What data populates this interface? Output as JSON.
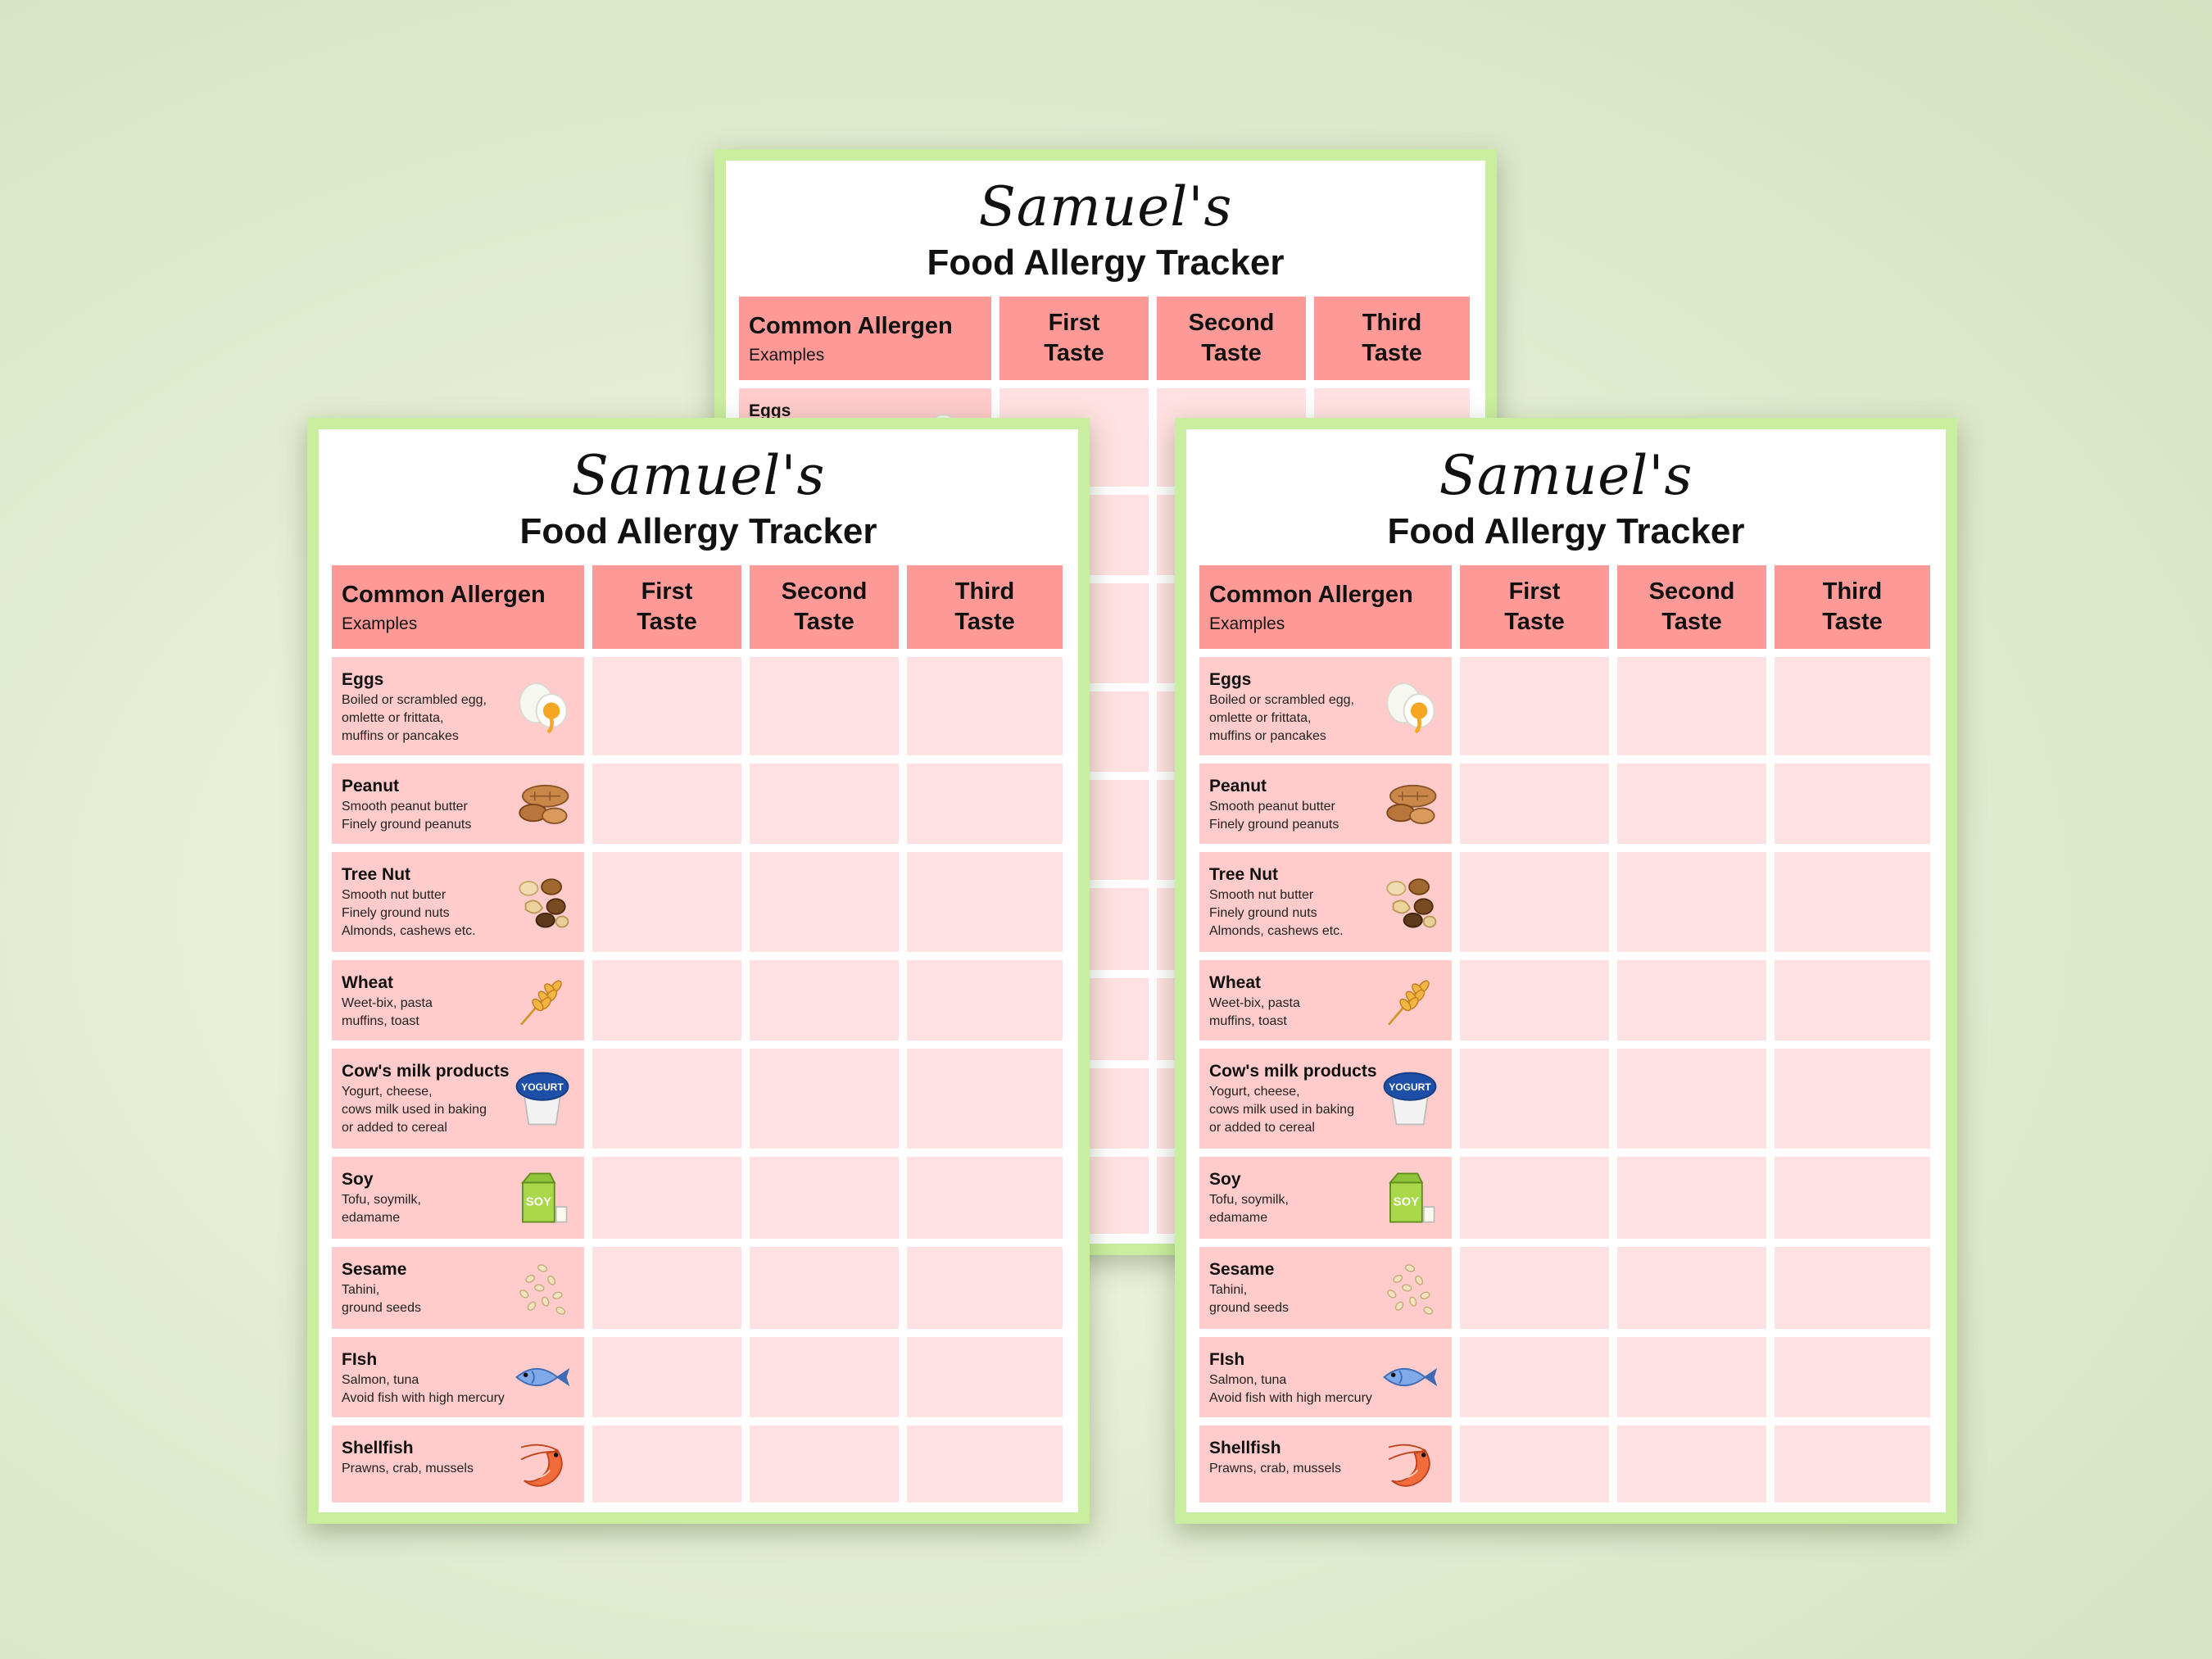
{
  "tracker": {
    "owner": "Samuel's",
    "title": "Food Allergy Tracker",
    "header": {
      "allergen": "Common Allergen",
      "examples": "Examples",
      "taste1_line1": "First",
      "taste1_line2": "Taste",
      "taste2_line1": "Second",
      "taste2_line2": "Taste",
      "taste3_line1": "Third",
      "taste3_line2": "Taste"
    },
    "allergens": [
      {
        "name": "Eggs",
        "examples": "Boiled or scrambled egg,\nomlette or frittata,\nmuffins or pancakes",
        "icon": "egg-icon"
      },
      {
        "name": "Peanut",
        "examples": "Smooth peanut butter\nFinely ground peanuts",
        "icon": "peanut-icon"
      },
      {
        "name": "Tree Nut",
        "examples": "Smooth nut butter\nFinely ground nuts\nAlmonds, cashews etc.",
        "icon": "tree-nut-icon"
      },
      {
        "name": "Wheat",
        "examples": "Weet-bix, pasta\nmuffins, toast",
        "icon": "wheat-icon"
      },
      {
        "name": "Cow's milk products",
        "examples": "Yogurt, cheese,\ncows milk used in baking\nor added to cereal",
        "icon": "yogurt-icon",
        "icon_text": "YOGURT"
      },
      {
        "name": "Soy",
        "examples": "Tofu, soymilk,\nedamame",
        "icon": "soy-milk-icon",
        "icon_text": "SOY"
      },
      {
        "name": "Sesame",
        "examples": "Tahini,\nground seeds",
        "icon": "sesame-seeds-icon"
      },
      {
        "name": "FIsh",
        "examples": "Salmon, tuna\nAvoid fish with high mercury",
        "icon": "fish-icon"
      },
      {
        "name": "Shellfish",
        "examples": "Prawns, crab, mussels",
        "icon": "shrimp-icon"
      }
    ]
  },
  "colors": {
    "background": "#dfe9cc",
    "sheet_border": "#c9ee9f",
    "header_cell": "#fd9a98",
    "allergen_cell": "#ffcbcb",
    "empty_cell": "#ffe1e1"
  }
}
